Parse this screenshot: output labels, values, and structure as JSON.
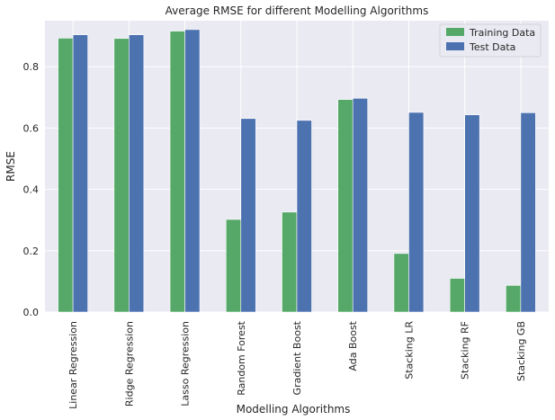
{
  "chart_data": {
    "type": "bar",
    "title": "Average RMSE for different Modelling Algorithms",
    "xlabel": "Modelling Algorithms",
    "ylabel": "RMSE",
    "ylim": [
      0,
      0.95
    ],
    "yticks": [
      "0.0",
      "0.2",
      "0.4",
      "0.6",
      "0.8"
    ],
    "grid": true,
    "legend_position": "top-right",
    "categories": [
      "Linear Regression",
      "Ridge Regression",
      "Lasso Regression",
      "Random Forest",
      "Gradient Boost",
      "Ada Boost",
      "Stacking LR",
      "Stacking RF",
      "Stacking GB"
    ],
    "series": [
      {
        "name": "Training Data",
        "color": "#55a868",
        "values": [
          0.893,
          0.892,
          0.916,
          0.302,
          0.326,
          0.693,
          0.191,
          0.11,
          0.087
        ]
      },
      {
        "name": "Test Data",
        "color": "#4c72b0",
        "values": [
          0.904,
          0.904,
          0.921,
          0.631,
          0.625,
          0.697,
          0.651,
          0.643,
          0.65
        ]
      }
    ]
  }
}
